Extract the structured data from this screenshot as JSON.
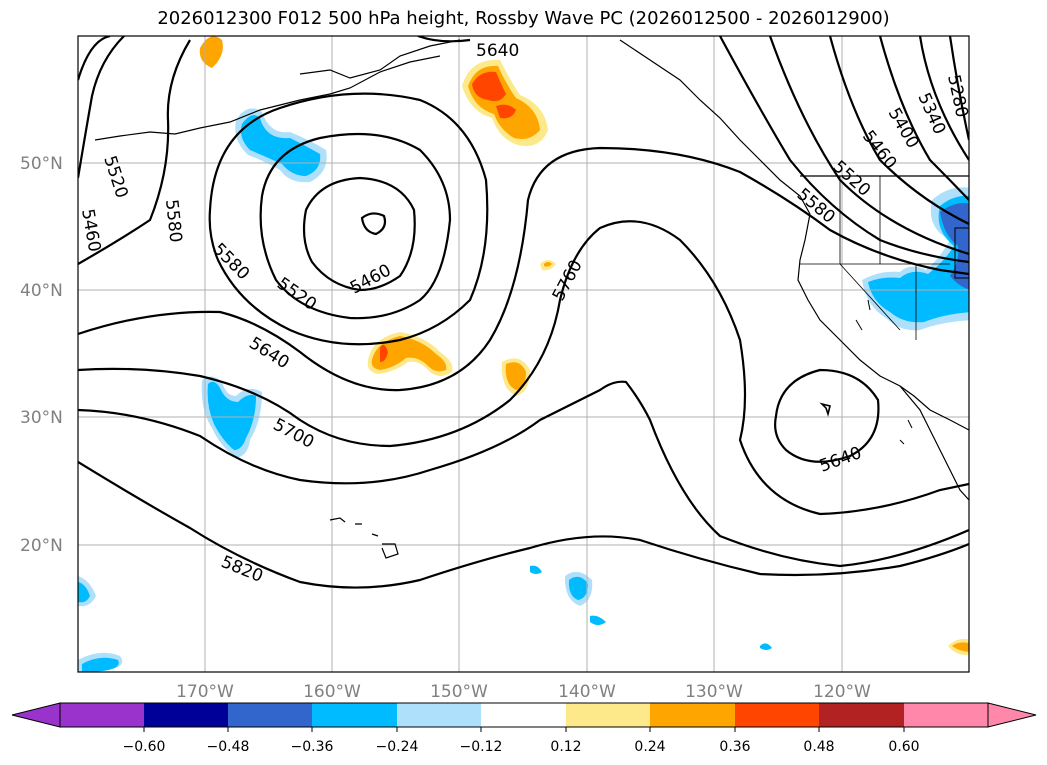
{
  "title": "2026012300 F012 500 hPa height, Rossby Wave PC (2026012500 - 2026012900)",
  "map": {
    "lat_labels": [
      "50°N",
      "40°N",
      "30°N",
      "20°N"
    ],
    "lon_labels": [
      "170°W",
      "160°W",
      "150°W",
      "140°W",
      "130°W",
      "120°W"
    ],
    "contour_labels": [
      "5460",
      "5520",
      "5580",
      "5640",
      "5700",
      "5760",
      "5820",
      "5280",
      "5340",
      "5400"
    ],
    "contour_label_texts": {
      "l5640_top": "5640",
      "l5520_left": "5520",
      "l5460_left": "5460",
      "l5580_left": "5580",
      "l5580_mid": "5580",
      "l5520_mid": "5520",
      "l5460_low": "5460",
      "l5640_mid": "5640",
      "l5700": "5700",
      "l5760": "5760",
      "l5820": "5820",
      "l5280": "5280",
      "l5340": "5340",
      "l5400": "5400",
      "l5460_right": "5460",
      "l5520_right": "5520",
      "l5580_right": "5580",
      "l5640_right": "5640"
    }
  },
  "colorbar": {
    "ticks": [
      "−0.60",
      "−0.48",
      "−0.36",
      "−0.24",
      "−0.12",
      "0.12",
      "0.24",
      "0.36",
      "0.48",
      "0.60"
    ],
    "colors": [
      "#9933cc",
      "#000099",
      "#3366cc",
      "#00bbff",
      "#aee0fb",
      "#ffffff",
      "#fde98a",
      "#ffa500",
      "#ff4500",
      "#b22222",
      "#ff88aa"
    ]
  },
  "colors": {
    "positive_1": "#fde98a",
    "positive_2": "#ffa500",
    "positive_3": "#ff4500",
    "negative_1": "#aee0fb",
    "negative_2": "#00bbff",
    "negative_3": "#3366cc"
  }
}
